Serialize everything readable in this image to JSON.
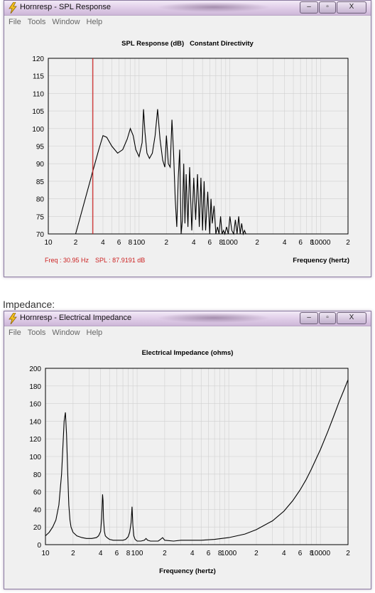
{
  "spl_window": {
    "title": "Hornresp - SPL Response",
    "menu": [
      "File",
      "Tools",
      "Window",
      "Help"
    ],
    "buttons": {
      "minimize": "–",
      "maximize": "▫",
      "close": "X"
    }
  },
  "impedance_caption": "Impedance:",
  "imp_window": {
    "title": "Hornresp - Electrical Impedance",
    "menu": [
      "File",
      "Tools",
      "Window",
      "Help"
    ],
    "buttons": {
      "minimize": "–",
      "maximize": "▫",
      "close": "X"
    }
  },
  "colors": {
    "cursor": "#cc2222",
    "curve": "#000000",
    "grid": "#d0d0d0",
    "readout": "#cc2222"
  },
  "chart_data": [
    {
      "type": "line",
      "title": "SPL Response (dB)   Constant Directivity",
      "xlabel": "Frequency (hertz)",
      "ylabel": "",
      "x_scale": "log",
      "xlim": [
        10,
        20000
      ],
      "ylim": [
        70,
        120
      ],
      "y_ticks": [
        70,
        75,
        80,
        85,
        90,
        95,
        100,
        105,
        110,
        115,
        120
      ],
      "x_tick_labels": [
        "10",
        "2",
        "4",
        "6",
        "8",
        "100",
        "2",
        "4",
        "6",
        "8",
        "1000",
        "2",
        "4",
        "6",
        "8",
        "10000",
        "2"
      ],
      "readout": {
        "freq": "Freq : 30.95 Hz",
        "spl": "SPL : 87.9191 dB"
      },
      "cursor_x": 30.95,
      "series": [
        {
          "x": [
            20,
            30.95,
            36,
            40,
            44,
            50,
            58,
            66,
            74,
            80,
            86,
            92,
            100,
            108,
            112,
            116,
            122,
            130,
            140,
            150,
            160,
            170,
            182,
            192,
            200,
            210,
            220,
            230,
            240,
            250,
            260,
            270,
            280,
            290,
            300,
            310,
            320,
            330,
            345,
            360,
            380,
            400,
            420,
            440,
            460,
            480,
            500,
            520,
            540,
            570,
            600,
            620,
            640,
            670,
            700,
            730,
            760,
            790,
            820,
            850,
            880,
            920,
            960,
            1000,
            1050,
            1100,
            1150,
            1200,
            1250,
            1300,
            1350,
            1400,
            1450,
            1500,
            1550,
            1600,
            1700,
            1800,
            1900,
            2000
          ],
          "y": [
            70,
            87.9,
            94,
            98,
            97.5,
            95,
            93,
            94,
            97,
            100,
            98,
            94,
            92,
            96,
            105.5,
            99,
            93,
            91.5,
            93,
            98,
            105.5,
            97,
            91,
            89,
            98,
            90,
            89,
            102.5,
            93,
            80,
            72,
            86,
            94,
            70,
            74,
            90,
            73,
            87,
            72,
            89,
            71,
            86,
            74,
            87,
            72,
            86,
            71,
            85,
            71,
            82,
            70,
            80,
            73,
            78,
            70,
            72,
            70,
            75,
            70,
            71,
            70,
            72,
            70,
            75,
            71,
            70,
            74,
            70,
            75,
            70,
            73,
            70,
            71,
            70,
            70,
            70,
            70,
            70,
            70,
            70
          ]
        }
      ]
    },
    {
      "type": "line",
      "title": "Electrical Impedance (ohms)",
      "xlabel": "Frequency (hertz)",
      "ylabel": "",
      "x_scale": "log",
      "xlim": [
        10,
        20000
      ],
      "ylim": [
        0,
        200
      ],
      "y_ticks": [
        0,
        20,
        40,
        60,
        80,
        100,
        120,
        140,
        160,
        180,
        200
      ],
      "x_tick_labels": [
        "10",
        "2",
        "4",
        "6",
        "8",
        "100",
        "2",
        "4",
        "6",
        "8",
        "1000",
        "2",
        "4",
        "6",
        "8",
        "10000",
        "2"
      ],
      "series": [
        {
          "x": [
            10,
            11,
            12,
            13,
            14,
            15,
            16,
            16.5,
            17,
            17.5,
            18,
            18.5,
            19,
            20,
            22,
            25,
            28,
            32,
            36,
            38,
            40,
            41,
            42,
            42.5,
            43,
            44,
            45,
            47,
            50,
            55,
            60,
            65,
            70,
            75,
            80,
            83,
            86,
            88,
            90,
            92,
            95,
            100,
            110,
            120,
            125,
            130,
            140,
            150,
            160,
            170,
            180,
            190,
            200,
            250,
            300,
            400,
            500,
            700,
            1000,
            1500,
            2000,
            3000,
            4000,
            5000,
            6000,
            7000,
            8000,
            10000,
            12000,
            14000,
            16000,
            18000,
            20000
          ],
          "y": [
            10,
            14,
            20,
            28,
            45,
            80,
            140,
            150,
            125,
            80,
            45,
            28,
            20,
            14,
            10,
            8,
            7,
            7,
            8,
            10,
            15,
            30,
            57,
            50,
            30,
            15,
            10,
            8,
            6,
            5,
            5,
            5,
            5,
            6,
            9,
            14,
            25,
            43,
            22,
            10,
            6,
            4,
            4,
            5,
            7,
            5,
            4,
            4,
            4,
            4,
            6,
            8,
            5,
            4,
            5,
            5,
            5,
            6,
            8,
            12,
            17,
            27,
            38,
            50,
            62,
            74,
            86,
            108,
            128,
            146,
            162,
            175,
            187
          ]
        }
      ]
    }
  ]
}
